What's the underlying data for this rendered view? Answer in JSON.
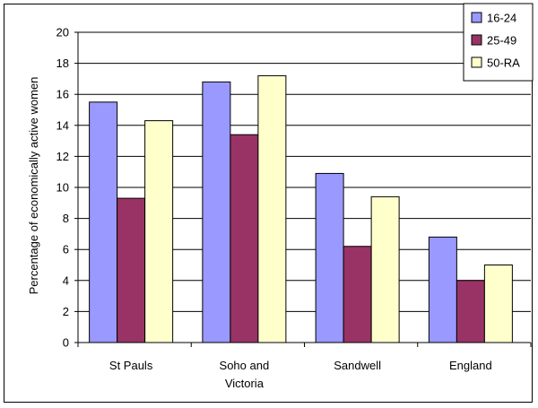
{
  "chart_data": {
    "type": "bar",
    "title": "",
    "xlabel": "",
    "ylabel": "Percentage of economically active women",
    "categories": [
      "St Pauls",
      "Soho and Victoria",
      "Sandwell",
      "England"
    ],
    "category_label_lines": [
      [
        "St Pauls"
      ],
      [
        "Soho and",
        "Victoria"
      ],
      [
        "Sandwell"
      ],
      [
        "England"
      ]
    ],
    "series": [
      {
        "name": "16-24",
        "color": "#9999ff",
        "values": [
          15.5,
          16.8,
          10.9,
          6.8
        ]
      },
      {
        "name": "25-49",
        "color": "#993366",
        "values": [
          9.3,
          13.4,
          6.2,
          4.0
        ]
      },
      {
        "name": "50-RA",
        "color": "#ffffcc",
        "values": [
          14.3,
          17.2,
          9.4,
          5.0
        ]
      }
    ],
    "ylim": [
      0,
      20
    ],
    "yticks": [
      0,
      2,
      4,
      6,
      8,
      10,
      12,
      14,
      16,
      18,
      20
    ],
    "grid": true,
    "legend_position": "top-right"
  }
}
